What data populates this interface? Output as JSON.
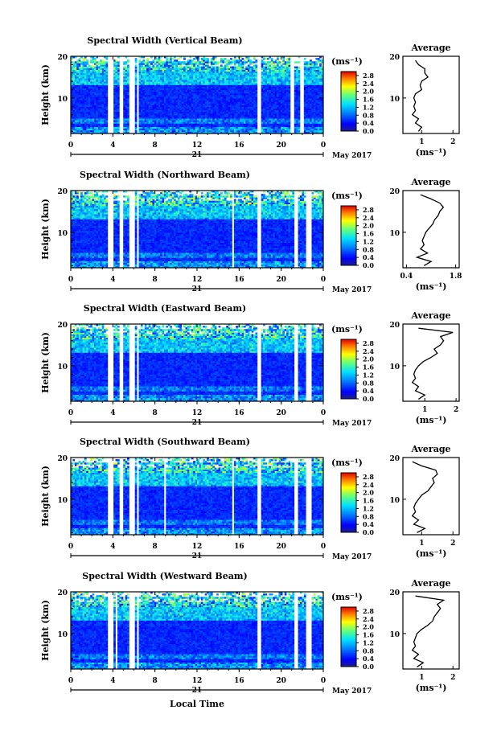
{
  "figure": {
    "x_axis_label": "Local Time",
    "date_label": "May 2017",
    "day_label": "21"
  },
  "chart_data": [
    {
      "type": "heatmap",
      "title": "Spectral Width (Vertical Beam)",
      "ylabel": "Height (km)",
      "xlim": [
        0,
        24
      ],
      "ylim": [
        1.5,
        20
      ],
      "xticks": [
        "0",
        "4",
        "8",
        "12",
        "16",
        "20",
        "0"
      ],
      "yticks": [
        "10",
        "20"
      ],
      "colorbar": {
        "unit": "(ms⁻¹)",
        "ticks": [
          "0.0",
          "0.4",
          "0.8",
          "1.2",
          "1.6",
          "2.0",
          "2.4",
          "2.8"
        ],
        "range": [
          0,
          3.0
        ]
      },
      "gaps": [
        [
          3.5,
          4.0
        ],
        [
          4.7,
          5.0
        ],
        [
          5.5,
          6.0
        ],
        [
          6.3,
          6.5
        ],
        [
          17.7,
          18.1
        ],
        [
          20.8,
          21.2
        ],
        [
          21.7,
          22.2
        ]
      ],
      "average": {
        "title": "Average",
        "xlabel": "(ms⁻¹)",
        "xlim": [
          0.4,
          2.2
        ],
        "xticks": [
          "1",
          "2"
        ],
        "yticks": [
          "10",
          "20"
        ],
        "heights": [
          2,
          3,
          4,
          5,
          6,
          7,
          8,
          9,
          10,
          11,
          12,
          13,
          14,
          15,
          16,
          17,
          18,
          19
        ],
        "values": [
          0.9,
          1.0,
          0.8,
          0.9,
          0.7,
          0.8,
          0.75,
          0.8,
          0.75,
          0.8,
          1.0,
          0.95,
          1.0,
          1.2,
          1.1,
          1.1,
          0.9,
          0.8
        ]
      }
    },
    {
      "type": "heatmap",
      "title": "Spectral Width (Northward Beam)",
      "ylabel": "Height (km)",
      "xlim": [
        0,
        24
      ],
      "ylim": [
        1.5,
        20
      ],
      "xticks": [
        "0",
        "4",
        "8",
        "12",
        "16",
        "20",
        "0"
      ],
      "yticks": [
        "10",
        "20"
      ],
      "colorbar": {
        "unit": "(ms⁻¹)",
        "ticks": [
          "0.0",
          "0.4",
          "0.8",
          "1.2",
          "1.6",
          "2.0",
          "2.4",
          "2.8"
        ],
        "range": [
          0,
          3.0
        ]
      },
      "gaps": [
        [
          3.5,
          4.0
        ],
        [
          4.7,
          5.0
        ],
        [
          5.5,
          6.0
        ],
        [
          6.3,
          6.5
        ],
        [
          15.3,
          15.6
        ],
        [
          17.7,
          18.1
        ],
        [
          21.2,
          21.6
        ],
        [
          22.4,
          22.9
        ]
      ],
      "average": {
        "title": "Average",
        "xlabel": "(ms⁻¹)",
        "xlim": [
          0.3,
          1.9
        ],
        "xticks": [
          "0.4",
          "1.8"
        ],
        "yticks": [
          "10",
          "20"
        ],
        "heights": [
          2,
          3,
          4,
          5,
          6,
          7,
          8,
          9,
          10,
          11,
          12,
          13,
          14,
          15,
          16,
          17,
          18,
          19
        ],
        "values": [
          0.9,
          1.1,
          0.7,
          1.0,
          0.8,
          0.9,
          0.85,
          0.9,
          0.95,
          1.05,
          1.15,
          1.2,
          1.3,
          1.35,
          1.45,
          1.35,
          1.1,
          0.8
        ]
      }
    },
    {
      "type": "heatmap",
      "title": "Spectral Width (Eastward Beam)",
      "ylabel": "Height (km)",
      "xlim": [
        0,
        24
      ],
      "ylim": [
        1.5,
        20
      ],
      "xticks": [
        "0",
        "4",
        "8",
        "12",
        "16",
        "20",
        "0"
      ],
      "yticks": [
        "10",
        "20"
      ],
      "colorbar": {
        "unit": "(ms⁻¹)",
        "ticks": [
          "0.0",
          "0.4",
          "0.8",
          "1.2",
          "1.6",
          "2.0",
          "2.4",
          "2.8"
        ],
        "range": [
          0,
          3.0
        ]
      },
      "gaps": [
        [
          3.5,
          4.0
        ],
        [
          4.7,
          5.0
        ],
        [
          5.5,
          6.0
        ],
        [
          6.3,
          6.5
        ],
        [
          17.7,
          18.1
        ],
        [
          21.2,
          21.6
        ],
        [
          22.4,
          22.9
        ]
      ],
      "average": {
        "title": "Average",
        "xlabel": "(ms⁻¹)",
        "xlim": [
          0.3,
          2.1
        ],
        "xticks": [
          "1",
          "2"
        ],
        "yticks": [
          "10",
          "20"
        ],
        "heights": [
          2,
          3,
          4,
          5,
          6,
          7,
          8,
          9,
          10,
          11,
          12,
          13,
          14,
          15,
          16,
          17,
          18,
          19
        ],
        "values": [
          0.8,
          1.0,
          0.7,
          0.8,
          0.6,
          0.7,
          0.65,
          0.7,
          0.8,
          0.95,
          1.2,
          1.4,
          1.3,
          1.5,
          1.6,
          1.5,
          1.9,
          0.8
        ]
      }
    },
    {
      "type": "heatmap",
      "title": "Spectral Width (Southward Beam)",
      "ylabel": "Height (km)",
      "xlim": [
        0,
        24
      ],
      "ylim": [
        1.5,
        20
      ],
      "xticks": [
        "0",
        "4",
        "8",
        "12",
        "16",
        "20",
        "0"
      ],
      "yticks": [
        "10",
        "20"
      ],
      "colorbar": {
        "unit": "(ms⁻¹)",
        "ticks": [
          "0.0",
          "0.4",
          "0.8",
          "1.2",
          "1.6",
          "2.0",
          "2.4",
          "2.8"
        ],
        "range": [
          0,
          3.0
        ]
      },
      "gaps": [
        [
          3.5,
          4.0
        ],
        [
          4.7,
          5.0
        ],
        [
          5.5,
          6.0
        ],
        [
          6.3,
          6.5
        ],
        [
          8.9,
          9.1
        ],
        [
          15.3,
          15.6
        ],
        [
          17.7,
          18.1
        ],
        [
          21.2,
          21.6
        ],
        [
          22.4,
          22.9
        ]
      ],
      "average": {
        "title": "Average",
        "xlabel": "(ms⁻¹)",
        "xlim": [
          0.4,
          2.2
        ],
        "xticks": [
          "1",
          "2"
        ],
        "yticks": [
          "10",
          "20"
        ],
        "heights": [
          2,
          3,
          4,
          5,
          6,
          7,
          8,
          9,
          10,
          11,
          12,
          13,
          14,
          15,
          16,
          17,
          18,
          19
        ],
        "values": [
          0.85,
          1.1,
          0.75,
          0.9,
          0.7,
          0.8,
          0.75,
          0.8,
          0.9,
          1.0,
          1.2,
          1.3,
          1.4,
          1.35,
          1.5,
          1.45,
          1.0,
          0.7
        ]
      }
    },
    {
      "type": "heatmap",
      "title": "Spectral Width (Westward Beam)",
      "ylabel": "Height (km)",
      "xlim": [
        0,
        24
      ],
      "ylim": [
        1.5,
        20
      ],
      "xticks": [
        "0",
        "4",
        "8",
        "12",
        "16",
        "20",
        "0"
      ],
      "yticks": [
        "10",
        "20"
      ],
      "colorbar": {
        "unit": "(ms⁻¹)",
        "ticks": [
          "0.0",
          "0.4",
          "0.8",
          "1.2",
          "1.6",
          "2.0",
          "2.4",
          "2.8"
        ],
        "range": [
          0,
          3.0
        ]
      },
      "gaps": [
        [
          3.5,
          4.0
        ],
        [
          4.3,
          4.5
        ],
        [
          5.5,
          6.0
        ],
        [
          6.3,
          6.5
        ],
        [
          17.7,
          18.1
        ],
        [
          21.2,
          21.6
        ],
        [
          22.4,
          22.9
        ]
      ],
      "average": {
        "title": "Average",
        "xlabel": "(ms⁻¹)",
        "xlim": [
          0.4,
          2.2
        ],
        "xticks": [
          "1",
          "2"
        ],
        "yticks": [
          "10",
          "20"
        ],
        "heights": [
          2,
          3,
          4,
          5,
          6,
          7,
          8,
          9,
          10,
          11,
          12,
          13,
          14,
          15,
          16,
          17,
          18,
          19
        ],
        "values": [
          0.85,
          1.05,
          0.75,
          0.9,
          0.7,
          0.8,
          0.75,
          0.8,
          0.85,
          1.0,
          1.2,
          1.35,
          1.4,
          1.5,
          1.6,
          1.5,
          1.7,
          0.8
        ]
      }
    }
  ]
}
